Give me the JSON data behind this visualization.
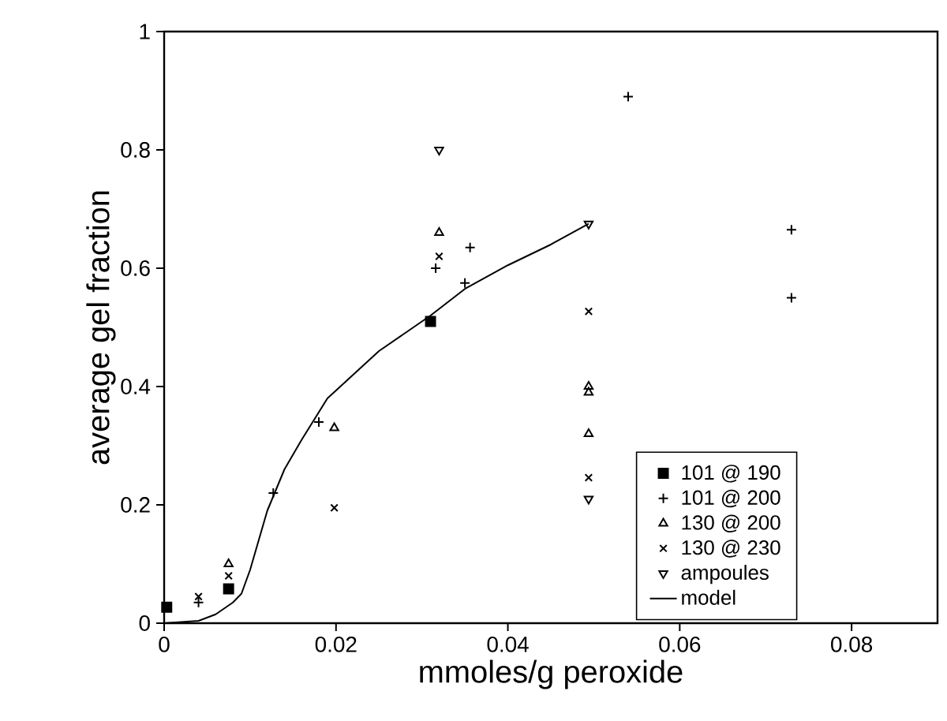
{
  "chart_data": {
    "type": "scatter",
    "xlabel": "mmoles/g peroxide",
    "ylabel": "average gel fraction",
    "xlim": [
      0,
      0.09
    ],
    "ylim": [
      0,
      1
    ],
    "xticks": [
      0,
      0.02,
      0.04,
      0.06,
      0.08
    ],
    "yticks": [
      0,
      0.2,
      0.4,
      0.6,
      0.8,
      1
    ],
    "grid": false,
    "legend": "bottom right",
    "series": [
      {
        "name": "101 @ 190",
        "color": "#000000",
        "marker": "square",
        "x": [
          0.0003,
          0.0075,
          0.031
        ],
        "values": [
          0.027,
          0.058,
          0.51
        ]
      },
      {
        "name": "101 @ 200",
        "color": "#000000",
        "marker": "plus",
        "x": [
          0.004,
          0.0127,
          0.018,
          0.0316,
          0.035,
          0.0356,
          0.054,
          0.073,
          0.073
        ],
        "values": [
          0.035,
          0.22,
          0.34,
          0.6,
          0.575,
          0.635,
          0.89,
          0.665,
          0.55
        ]
      },
      {
        "name": "130 @ 200",
        "color": "#000000",
        "marker": "triangle",
        "x": [
          0.0075,
          0.0198,
          0.032,
          0.0494,
          0.0494,
          0.0494
        ],
        "values": [
          0.1,
          0.33,
          0.66,
          0.4,
          0.39,
          0.32
        ]
      },
      {
        "name": "130 @ 230",
        "color": "#000000",
        "marker": "cross",
        "x": [
          0.004,
          0.0075,
          0.0198,
          0.032,
          0.0494,
          0.0494
        ],
        "values": [
          0.045,
          0.08,
          0.195,
          0.62,
          0.527,
          0.246
        ]
      },
      {
        "name": "ampoules",
        "color": "#000000",
        "marker": "triangle-down",
        "x": [
          0.032,
          0.0494,
          0.0494
        ],
        "values": [
          0.8,
          0.675,
          0.21
        ]
      },
      {
        "name": "model",
        "type": "line",
        "color": "#000000",
        "marker": "none",
        "line_style": "solid",
        "x": [
          0,
          0.004,
          0.006,
          0.008,
          0.009,
          0.01,
          0.012,
          0.014,
          0.016,
          0.019,
          0.022,
          0.025,
          0.028,
          0.031,
          0.035,
          0.04,
          0.045,
          0.0494
        ],
        "values": [
          0,
          0.004,
          0.015,
          0.035,
          0.05,
          0.09,
          0.19,
          0.26,
          0.31,
          0.38,
          0.42,
          0.46,
          0.49,
          0.52,
          0.565,
          0.605,
          0.64,
          0.675
        ]
      }
    ]
  }
}
